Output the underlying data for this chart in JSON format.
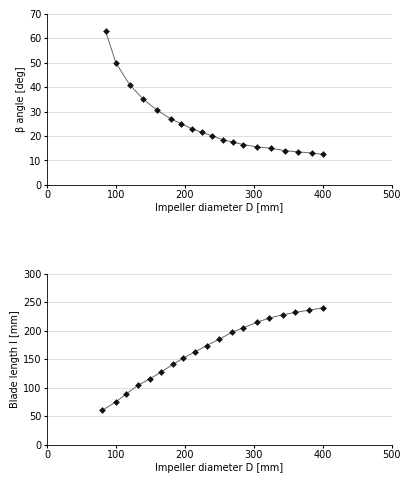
{
  "top_chart": {
    "x": [
      85,
      100,
      120,
      140,
      160,
      180,
      195,
      210,
      225,
      240,
      255,
      270,
      285,
      305,
      325,
      345,
      365,
      385,
      400
    ],
    "y": [
      63,
      50,
      41,
      35,
      30.5,
      27,
      25,
      23,
      21.5,
      20,
      18.5,
      17.5,
      16.5,
      15.5,
      15,
      14,
      13.5,
      13,
      12.5
    ],
    "xlabel": "Impeller diameter D [mm]",
    "ylabel": "β angle [deg]",
    "xlim": [
      0,
      500
    ],
    "ylim": [
      0,
      70
    ],
    "xticks": [
      0,
      100,
      200,
      300,
      400,
      500
    ],
    "yticks": [
      0,
      10,
      20,
      30,
      40,
      50,
      60,
      70
    ]
  },
  "bottom_chart": {
    "x": [
      80,
      100,
      115,
      132,
      150,
      165,
      183,
      198,
      215,
      232,
      250,
      268,
      285,
      305,
      322,
      342,
      360,
      380,
      400
    ],
    "y": [
      60,
      75,
      89,
      104,
      116,
      127,
      141,
      152,
      163,
      174,
      185,
      197,
      205,
      215,
      222,
      228,
      232,
      236,
      240
    ],
    "xlabel": "Impeller diameter D [mm]",
    "ylabel": "Blade length l [mm]",
    "xlim": [
      0,
      500
    ],
    "ylim": [
      0,
      300
    ],
    "xticks": [
      0,
      100,
      200,
      300,
      400,
      500
    ],
    "yticks": [
      0,
      50,
      100,
      150,
      200,
      250,
      300
    ]
  },
  "marker": "D",
  "marker_size": 3,
  "marker_color": "#111111",
  "line_color": "#666666",
  "line_width": 0.7,
  "bg_color": "#ffffff",
  "tick_labelsize": 7,
  "axis_labelsize": 7,
  "grid_color": "#d0d0d0",
  "grid_lw": 0.5
}
